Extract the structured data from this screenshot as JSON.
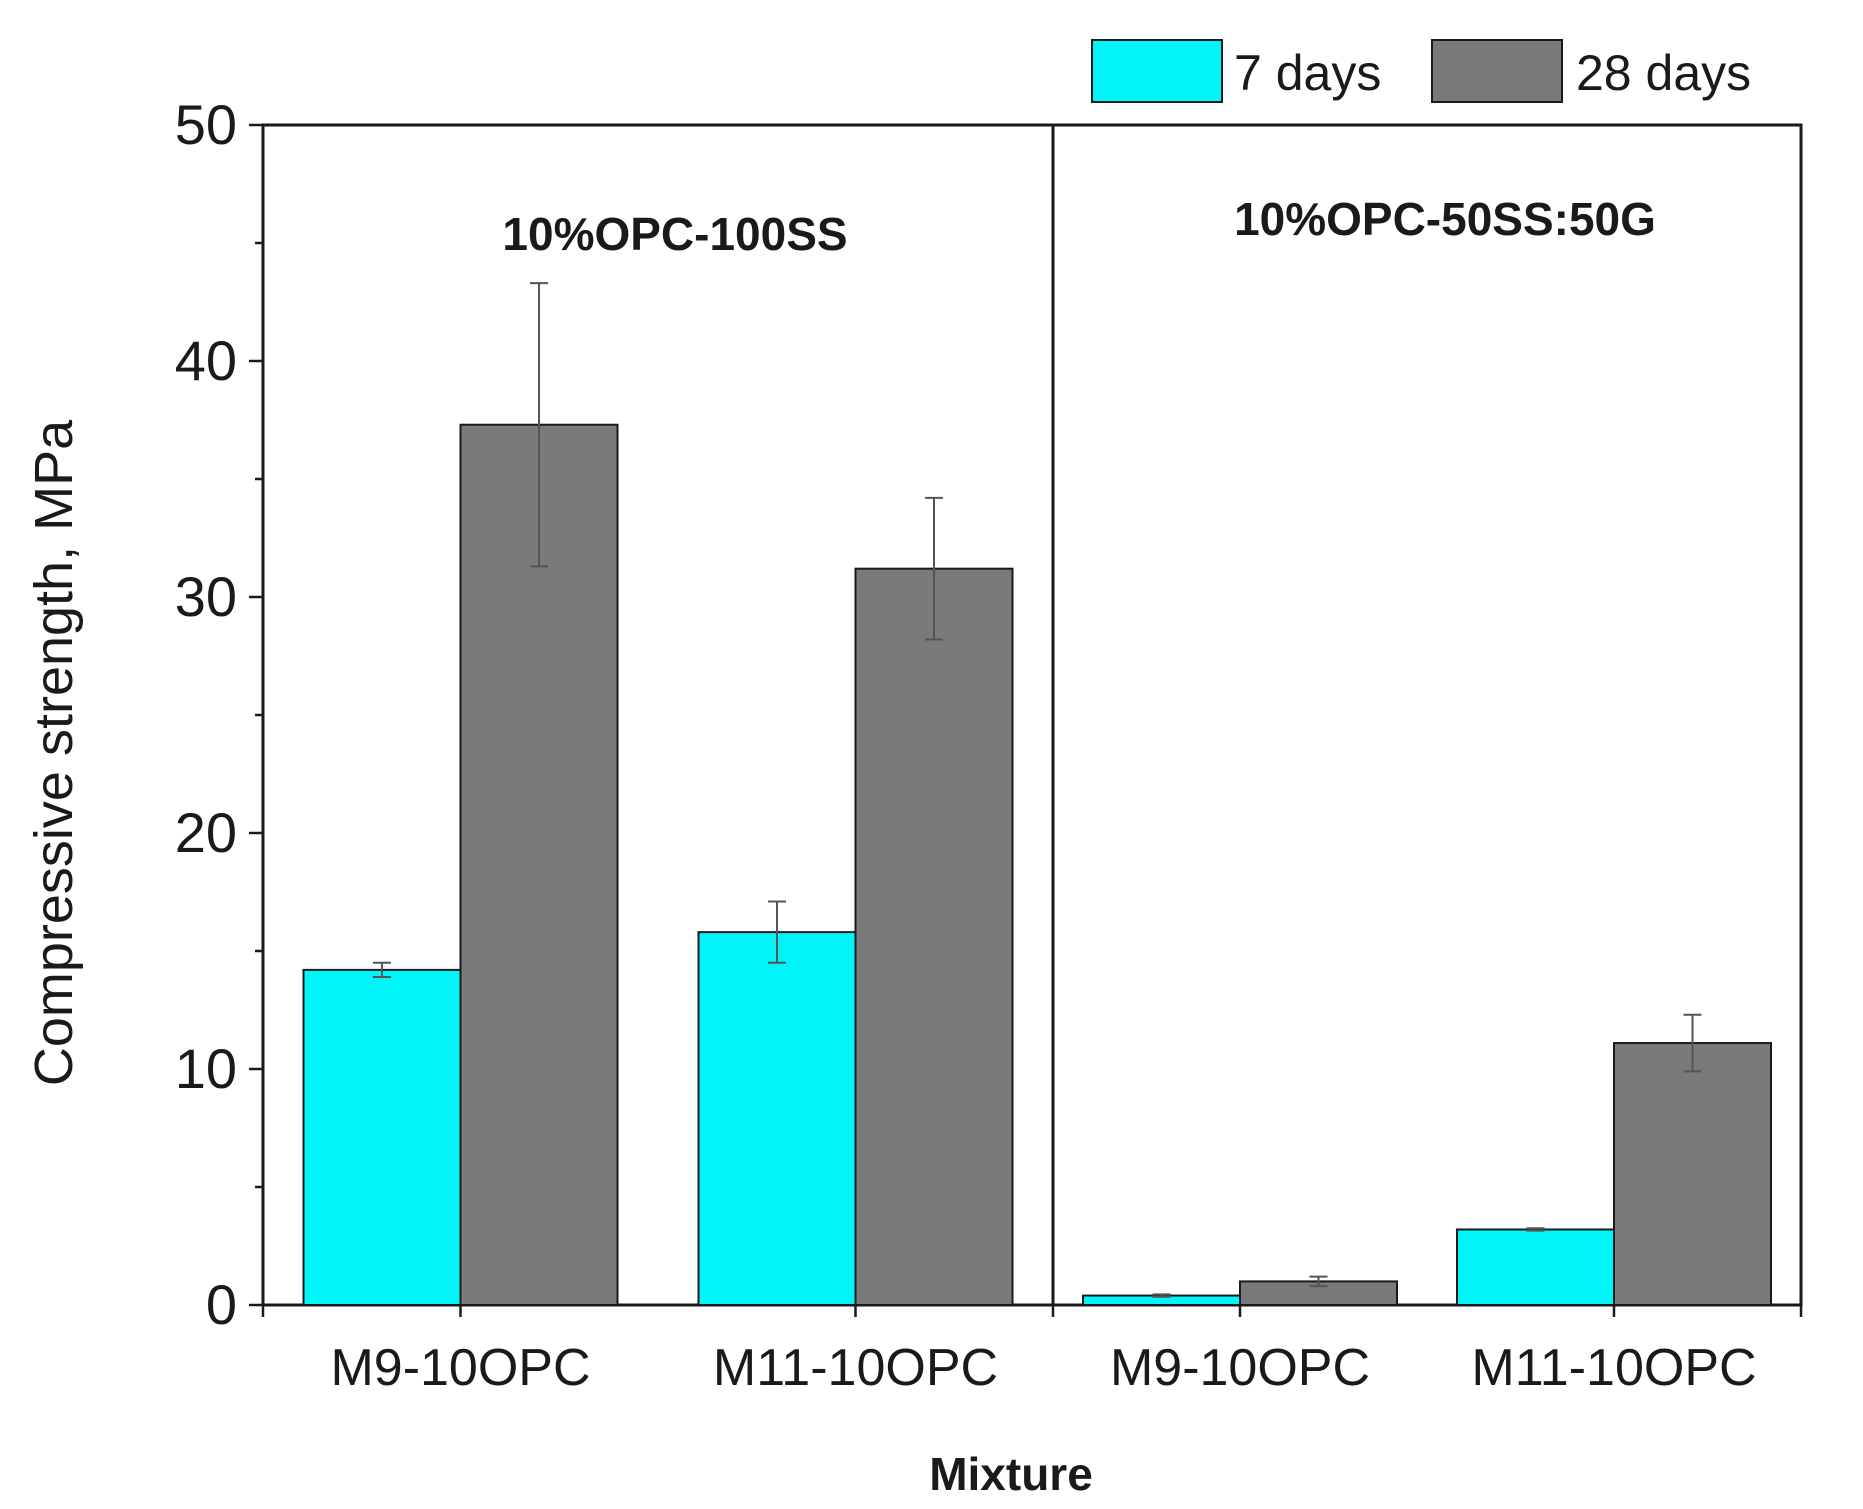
{
  "chart_data": {
    "type": "bar",
    "ylabel": "Compressive strength, MPa",
    "xlabel": "Mixture",
    "ylim": [
      0,
      50
    ],
    "yticks": [
      0,
      10,
      20,
      30,
      40,
      50
    ],
    "legend_position": "top-right",
    "panels": [
      {
        "title": "10%OPC-100SS",
        "categories": [
          "M9-10OPC",
          "M11-10OPC"
        ],
        "series": [
          {
            "name": "7 days",
            "values": [
              14.2,
              15.8
            ],
            "errors": [
              0.3,
              1.3
            ]
          },
          {
            "name": "28 days",
            "values": [
              37.3,
              31.2
            ],
            "errors": [
              6.0,
              3.0
            ]
          }
        ]
      },
      {
        "title": "10%OPC-50SS:50G",
        "categories": [
          "M9-10OPC",
          "M11-10OPC"
        ],
        "series": [
          {
            "name": "7 days",
            "values": [
              0.4,
              3.2
            ],
            "errors": [
              0.05,
              0.05
            ]
          },
          {
            "name": "28 days",
            "values": [
              1.0,
              11.1
            ],
            "errors": [
              0.2,
              1.2
            ]
          }
        ]
      }
    ],
    "series_colors": {
      "7 days": "#00f5f8",
      "28 days": "#7a7a7a"
    },
    "legend": [
      "7 days",
      "28 days"
    ]
  }
}
